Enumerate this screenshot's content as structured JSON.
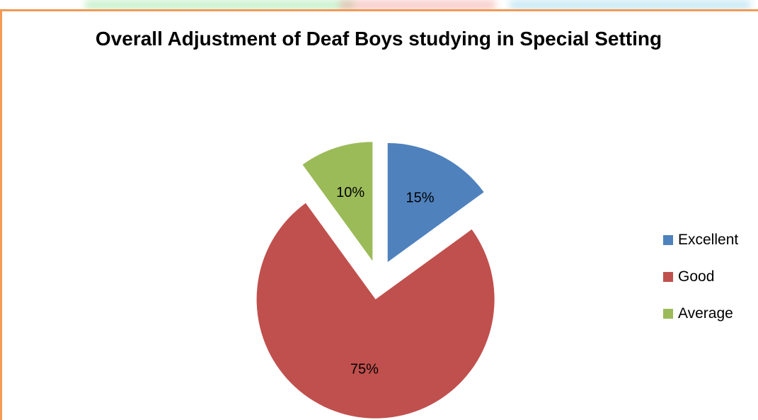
{
  "top_strip": {
    "colors": [
      "#9fe6a8",
      "#f2a6a0",
      "#9fd8ee"
    ]
  },
  "frame": {
    "border_color": "#f29a56"
  },
  "chart_data": {
    "type": "pie",
    "title": "Overall Adjustment of Deaf Boys studying in Special Setting",
    "slices": [
      {
        "name": "Excellent",
        "value": 15,
        "label": "15%",
        "color": "#4f81bd",
        "exploded": true
      },
      {
        "name": "Good",
        "value": 75,
        "label": "75%",
        "color": "#c0504d",
        "exploded": true
      },
      {
        "name": "Average",
        "value": 10,
        "label": "10%",
        "color": "#9bbb59",
        "exploded": true
      }
    ],
    "start_angle": "12 o'clock, clockwise",
    "legend": {
      "position": "right",
      "entries": [
        "Excellent",
        "Good",
        "Average"
      ]
    }
  }
}
